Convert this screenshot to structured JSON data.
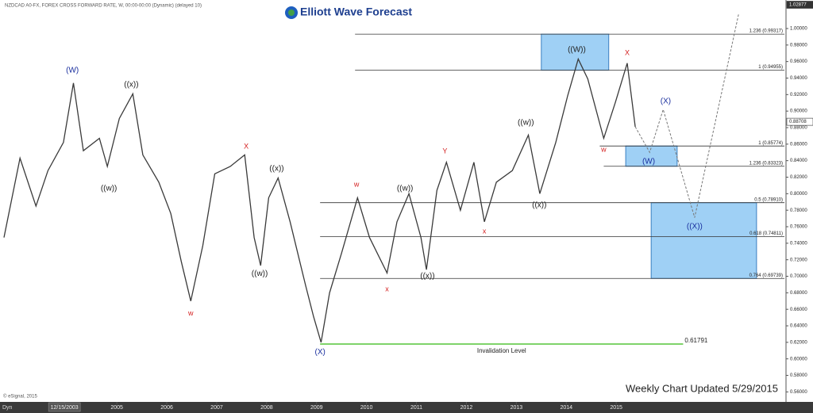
{
  "header": "NZDCAD A0-FX, FOREX CROSS FORWARD RATE, W, 00:00-00:00 (Dynamic) (delayed 10)",
  "logo": "Elliott Wave Forecast",
  "copyright": "© eSignal, 2015",
  "update": "Weekly Chart Updated 5/29/2015",
  "corner": "Dyn",
  "chart_data": {
    "type": "line",
    "color": "#3a3a3a",
    "x": [
      2002.74,
      2003.06,
      2003.38,
      2003.62,
      2003.93,
      2004.13,
      2004.33,
      2004.65,
      2004.81,
      2005.05,
      2005.32,
      2005.52,
      2005.84,
      2006.08,
      2006.29,
      2006.48,
      2006.72,
      2006.96,
      2007.27,
      2007.56,
      2007.75,
      2007.88,
      2008.04,
      2008.23,
      2008.47,
      2008.78,
      2008.94,
      2009.09,
      2009.26,
      2009.5,
      2009.82,
      2010.06,
      2010.41,
      2010.61,
      2010.85,
      2011.09,
      2011.2,
      2011.41,
      2011.6,
      2011.88,
      2012.15,
      2012.36,
      2012.6,
      2012.92,
      2013.24,
      2013.47,
      2013.79,
      2014.03,
      2014.24,
      2014.43,
      2014.75,
      2014.98,
      2015.22,
      2015.38
    ],
    "values": [
      0.747,
      0.843,
      0.785,
      0.828,
      0.862,
      0.934,
      0.852,
      0.867,
      0.833,
      0.891,
      0.921,
      0.847,
      0.814,
      0.776,
      0.718,
      0.67,
      0.737,
      0.824,
      0.833,
      0.847,
      0.747,
      0.713,
      0.795,
      0.819,
      0.766,
      0.689,
      0.651,
      0.62,
      0.68,
      0.728,
      0.795,
      0.747,
      0.704,
      0.766,
      0.8,
      0.747,
      0.708,
      0.804,
      0.838,
      0.78,
      0.838,
      0.766,
      0.814,
      0.828,
      0.871,
      0.8,
      0.862,
      0.919,
      0.963,
      0.939,
      0.867,
      0.91,
      0.958,
      0.881
    ],
    "xlim": [
      2002.66,
      2018.4
    ],
    "xticks": [
      {
        "value": 2003.95,
        "label": "12/15/2003"
      },
      2005,
      2006,
      2007,
      2008,
      2009,
      2010,
      2011,
      2012,
      2013,
      2014,
      2015
    ],
    "ylim": [
      0.545,
      1.02877
    ],
    "yticks": [
      {
        "value": 0.56,
        "label": "0.56000"
      },
      {
        "value": 0.58,
        "label": "0.58000"
      },
      {
        "value": 0.6,
        "label": "0.60000"
      },
      {
        "value": 0.62,
        "label": "0.62000"
      },
      {
        "value": 0.64,
        "label": "0.64000"
      },
      {
        "value": 0.66,
        "label": "0.66000"
      },
      {
        "value": 0.68,
        "label": "0.68000"
      },
      {
        "value": 0.7,
        "label": "0.70000"
      },
      {
        "value": 0.72,
        "label": "0.72000"
      },
      {
        "value": 0.74,
        "label": "0.74000"
      },
      {
        "value": 0.76,
        "label": "0.76000"
      },
      {
        "value": 0.78,
        "label": "0.78000"
      },
      {
        "value": 0.8,
        "label": "0.80000"
      },
      {
        "value": 0.82,
        "label": "0.82000"
      },
      {
        "value": 0.84,
        "label": "0.84000"
      },
      {
        "value": 0.86,
        "label": "0.86000"
      },
      {
        "value": 0.88,
        "label": "0.88000"
      },
      {
        "value": 0.9,
        "label": "0.90000"
      },
      {
        "value": 0.92,
        "label": "0.92000"
      },
      {
        "value": 0.94,
        "label": "0.94000"
      },
      {
        "value": 0.96,
        "label": "0.96000"
      },
      {
        "value": 0.98,
        "label": "0.98000"
      },
      {
        "value": 1,
        "label": "1.00000"
      }
    ],
    "axis_markers": [
      1.02877,
      0.88708
    ],
    "projection": {
      "color": "#777777",
      "x": [
        2015.38,
        2015.67,
        2015.94,
        2016.57,
        2017.45
      ],
      "values": [
        0.881,
        0.85,
        0.902,
        0.771,
        1.017
      ]
    },
    "levels": [
      {
        "label": "1.236 (0.99317)",
        "value": 0.99317,
        "from": 2009.77
      },
      {
        "label": "1 (0.94955)",
        "value": 0.94955,
        "from": 2009.77
      },
      {
        "label": "1 (0.85774)",
        "value": 0.85774,
        "from": 2014.67
      },
      {
        "label": "1.236 (0.83323)",
        "value": 0.83323,
        "from": 2014.75
      },
      {
        "label": "0.5 (0.78910)",
        "value": 0.7891,
        "from": 2009.07
      },
      {
        "label": "0.618 (0.74811)",
        "value": 0.74811,
        "from": 2009.07
      },
      {
        "label": "0.764 (0.69739)",
        "value": 0.69739,
        "from": 2009.07
      }
    ],
    "zones": [
      {
        "from": 2013.5,
        "to": 2014.85,
        "top": 0.99317,
        "bottom": 0.94955
      },
      {
        "from": 2015.19,
        "to": 2016.22,
        "top": 0.85774,
        "bottom": 0.83323
      },
      {
        "from": 2015.7,
        "to": 2017.81,
        "top": 0.7891,
        "bottom": 0.69739
      }
    ],
    "zone_color": "#9fd0f5",
    "invalidation": {
      "value": 0.61791,
      "label": "0.61791",
      "text": "Invalidation Level",
      "from": 2009.07,
      "to": 2016.34,
      "color": "#7fd36a"
    },
    "waves": [
      {
        "text": "(W)",
        "x": 2004.11,
        "y": 0.949,
        "color": "#1a2f9e"
      },
      {
        "text": "((x))",
        "x": 2005.29,
        "y": 0.932,
        "color": "#222222"
      },
      {
        "text": "((w))",
        "x": 2004.84,
        "y": 0.806,
        "color": "#222222"
      },
      {
        "text": "w",
        "x": 2006.48,
        "y": 0.655,
        "color": "#d42020"
      },
      {
        "text": "X",
        "x": 2007.59,
        "y": 0.857,
        "color": "#d42020"
      },
      {
        "text": "((w))",
        "x": 2007.86,
        "y": 0.703,
        "color": "#222222"
      },
      {
        "text": "((x))",
        "x": 2008.2,
        "y": 0.83,
        "color": "#222222"
      },
      {
        "text": "(X)",
        "x": 2009.07,
        "y": 0.608,
        "color": "#1a2f9e"
      },
      {
        "text": "w",
        "x": 2009.8,
        "y": 0.811,
        "color": "#d42020"
      },
      {
        "text": "x",
        "x": 2010.41,
        "y": 0.684,
        "color": "#d42020"
      },
      {
        "text": "((w))",
        "x": 2010.77,
        "y": 0.806,
        "color": "#222222"
      },
      {
        "text": "((x))",
        "x": 2011.22,
        "y": 0.7,
        "color": "#222222"
      },
      {
        "text": "Y",
        "x": 2011.57,
        "y": 0.851,
        "color": "#d42020"
      },
      {
        "text": "x",
        "x": 2012.36,
        "y": 0.754,
        "color": "#d42020"
      },
      {
        "text": "((w))",
        "x": 2013.19,
        "y": 0.886,
        "color": "#222222"
      },
      {
        "text": "((x))",
        "x": 2013.46,
        "y": 0.786,
        "color": "#222222"
      },
      {
        "text": "((W))",
        "x": 2014.21,
        "y": 0.974,
        "color": "#222222"
      },
      {
        "text": "X",
        "x": 2015.22,
        "y": 0.97,
        "color": "#d42020"
      },
      {
        "text": "w",
        "x": 2014.75,
        "y": 0.853,
        "color": "#d42020"
      },
      {
        "text": "(X)",
        "x": 2015.99,
        "y": 0.912,
        "color": "#1a2f9e"
      },
      {
        "text": "(W)",
        "x": 2015.65,
        "y": 0.839,
        "color": "#1a2f9e"
      },
      {
        "text": "((X))",
        "x": 2016.57,
        "y": 0.76,
        "color": "#1a2f9e"
      }
    ]
  }
}
